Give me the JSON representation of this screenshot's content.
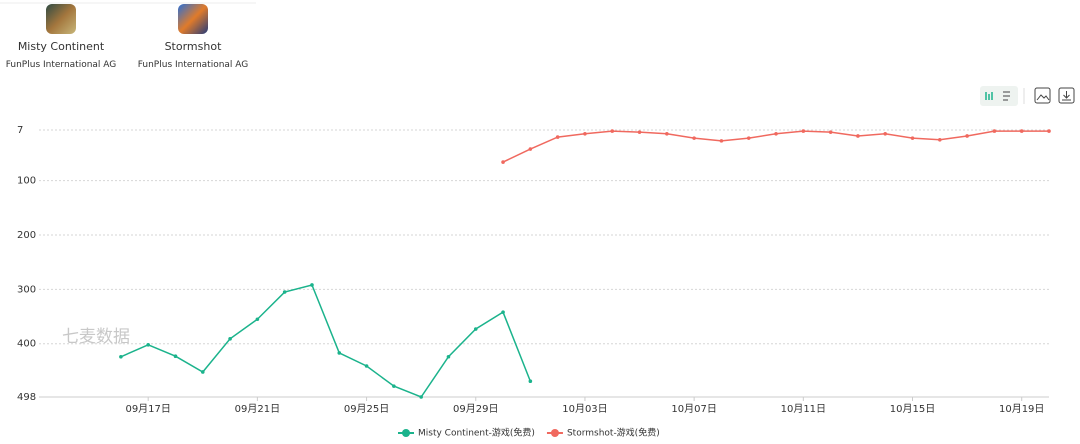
{
  "apps": [
    {
      "name": "Misty Continent",
      "publisher": "FunPlus International AG"
    },
    {
      "name": "Stormshot",
      "publisher": "FunPlus International AG"
    }
  ],
  "watermark": "七麦数据",
  "chart_data": {
    "type": "line",
    "categories": [
      null,
      null,
      null,
      null,
      "09月17日",
      null,
      null,
      null,
      "09月21日",
      null,
      null,
      null,
      "09月25日",
      null,
      null,
      null,
      "09月29日",
      null,
      null,
      null,
      "10月03日",
      null,
      null,
      null,
      "10月07日",
      null,
      null,
      null,
      "10月11日",
      null,
      null,
      null,
      "10月15日",
      null,
      null,
      null,
      "10月19日",
      null
    ],
    "series": [
      {
        "name": "Misty Continent-游戏(免费)",
        "color": "#1bb38c",
        "values": [
          null,
          null,
          null,
          424,
          402,
          423,
          452,
          391,
          355,
          305,
          292,
          417,
          441,
          478,
          498,
          424,
          373,
          342,
          469,
          null,
          null,
          null,
          null,
          null,
          null,
          null,
          null,
          null,
          null,
          null,
          null,
          null,
          null,
          null,
          null,
          null,
          null,
          null
        ]
      },
      {
        "name": "Stormshot-游戏(免费)",
        "color": "#f0695f",
        "values": [
          null,
          null,
          null,
          null,
          null,
          null,
          null,
          null,
          null,
          null,
          null,
          null,
          null,
          null,
          null,
          null,
          null,
          66,
          42,
          20,
          14,
          9,
          11,
          14,
          22,
          27,
          22,
          14,
          9,
          11,
          18,
          14,
          22,
          25,
          18,
          9,
          9,
          9
        ]
      }
    ],
    "ylim": [
      498,
      7
    ],
    "yticks": [
      7,
      100,
      200,
      300,
      400,
      498
    ],
    "grid": true
  }
}
